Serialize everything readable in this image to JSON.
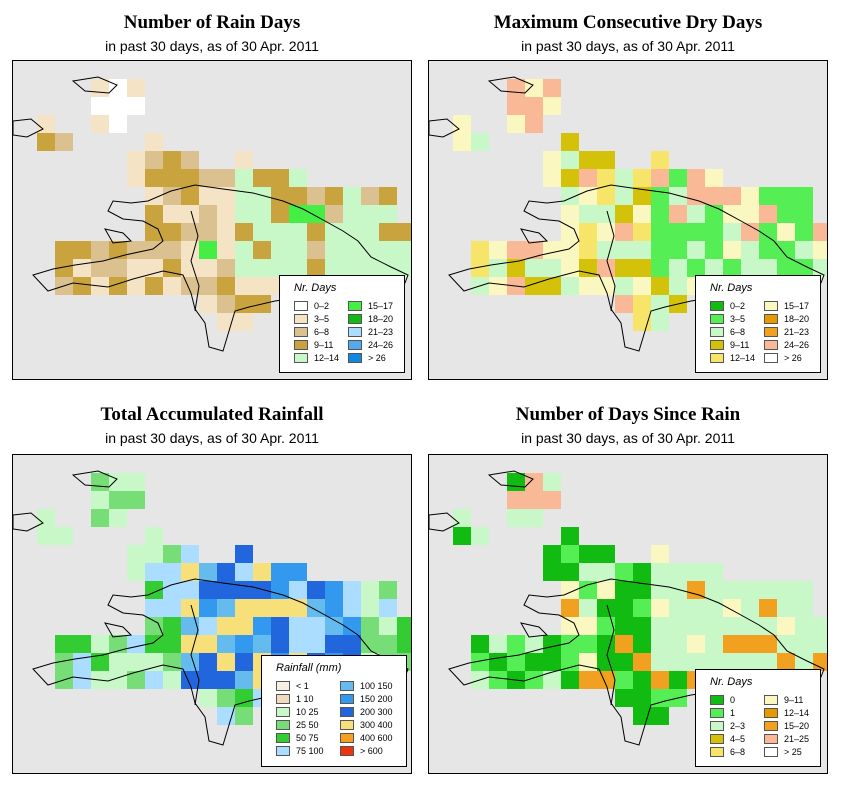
{
  "panels": [
    {
      "id": "rain-days",
      "title": "Number of Rain Days",
      "subtitle": "in past 30 days, as of  30 Apr. 2011",
      "legend": {
        "title": "Nr. Days",
        "items": [
          {
            "label": "0–2",
            "color": "#ffffff"
          },
          {
            "label": "3–5",
            "color": "#f5e3c5"
          },
          {
            "label": "6–8",
            "color": "#dcc190"
          },
          {
            "label": "9–11",
            "color": "#c9a43e"
          },
          {
            "label": "12–14",
            "color": "#c8f7c8"
          },
          {
            "label": "15–17",
            "color": "#44ee44"
          },
          {
            "label": "18–20",
            "color": "#11bb11"
          },
          {
            "label": "21–23",
            "color": "#aaddff"
          },
          {
            "label": "24–26",
            "color": "#55aaee"
          },
          {
            "label": "> 26",
            "color": "#1188dd"
          }
        ]
      }
    },
    {
      "id": "max-dry-days",
      "title": "Maximum Consecutive Dry Days",
      "subtitle": "in past 30 days, as of  30 Apr. 2011",
      "legend": {
        "title": "Nr. Days",
        "items": [
          {
            "label": "0–2",
            "color": "#11bb11"
          },
          {
            "label": "3–5",
            "color": "#55ee55"
          },
          {
            "label": "6–8",
            "color": "#c8f7c8"
          },
          {
            "label": "9–11",
            "color": "#d4c10a"
          },
          {
            "label": "12–14",
            "color": "#f7e56a"
          },
          {
            "label": "15–17",
            "color": "#fbf7c0"
          },
          {
            "label": "18–20",
            "color": "#e69a00"
          },
          {
            "label": "21–23",
            "color": "#f2a020"
          },
          {
            "label": "24–26",
            "color": "#f9b896"
          },
          {
            "label": "> 26",
            "color": "#ffffff"
          }
        ]
      }
    },
    {
      "id": "total-rainfall",
      "title": "Total Accumulated Rainfall",
      "subtitle": "in past 30 days, as of  30 Apr. 2011",
      "legend": {
        "title": "Rainfall (mm)",
        "items": [
          {
            "label": "< 1",
            "color": "#f7efe2"
          },
          {
            "label": "1    10",
            "color": "#f0dcbc"
          },
          {
            "label": "10    25",
            "color": "#c8f7c8"
          },
          {
            "label": "25    50",
            "color": "#77dd77"
          },
          {
            "label": "50    75",
            "color": "#33cc33"
          },
          {
            "label": "75    100",
            "color": "#aaddff"
          },
          {
            "label": "100    150",
            "color": "#66bbee"
          },
          {
            "label": "150    200",
            "color": "#3399ee"
          },
          {
            "label": "200    300",
            "color": "#2266dd"
          },
          {
            "label": "300    400",
            "color": "#f7e07a"
          },
          {
            "label": "400    600",
            "color": "#f5a020"
          },
          {
            "label": "> 600",
            "color": "#ee3311"
          }
        ]
      }
    },
    {
      "id": "days-since-rain",
      "title": "Number of Days Since Rain",
      "subtitle": "in past 30 days, as of  30 Apr. 2011",
      "legend": {
        "title": "Nr. Days",
        "items": [
          {
            "label": "0",
            "color": "#11bb11"
          },
          {
            "label": "1",
            "color": "#55ee55"
          },
          {
            "label": "2–3",
            "color": "#c8f7c8"
          },
          {
            "label": "4–5",
            "color": "#d4c10a"
          },
          {
            "label": "6–8",
            "color": "#f7e56a"
          },
          {
            "label": "9–11",
            "color": "#fbf7c0"
          },
          {
            "label": "12–14",
            "color": "#e69a00"
          },
          {
            "label": "15–20",
            "color": "#f2a020"
          },
          {
            "label": "21–25",
            "color": "#f9b896"
          },
          {
            "label": "> 25",
            "color": "#ffffff"
          }
        ]
      }
    }
  ]
}
